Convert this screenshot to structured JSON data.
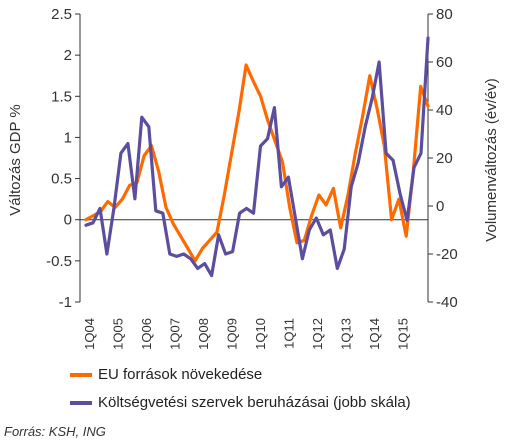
{
  "chart_data": {
    "type": "line",
    "x_ticks": [
      "1Q04",
      "1Q05",
      "1Q06",
      "1Q07",
      "1Q08",
      "1Q09",
      "1Q10",
      "1Q11",
      "1Q12",
      "1Q13",
      "1Q14",
      "1Q15"
    ],
    "ylabel_left": "Változás GDP %",
    "ylabel_right": "Volumenváltozás (év/év)",
    "ylim_left": [
      -1,
      2.5
    ],
    "yticks_left": [
      "-1",
      "-0.5",
      "0",
      "0.5",
      "1",
      "1.5",
      "2",
      "2.5"
    ],
    "ylim_right": [
      -40,
      80
    ],
    "yticks_right": [
      "-40",
      "-20",
      "0",
      "20",
      "40",
      "60",
      "80"
    ],
    "grid": false,
    "legend_position": "bottom",
    "series": [
      {
        "name": "EU források növekedése",
        "axis": "left",
        "color": "#ff6a00",
        "values": [
          0.0,
          0.05,
          0.1,
          0.22,
          0.15,
          0.25,
          0.42,
          0.45,
          0.78,
          0.9,
          0.58,
          0.15,
          -0.05,
          -0.2,
          -0.35,
          -0.5,
          -0.35,
          -0.25,
          -0.15,
          0.3,
          0.8,
          1.3,
          1.88,
          1.68,
          1.5,
          1.2,
          0.95,
          0.7,
          0.15,
          -0.28,
          -0.25,
          0.05,
          0.3,
          0.18,
          0.38,
          -0.1,
          0.3,
          0.8,
          1.25,
          1.75,
          1.35,
          0.9,
          0.0,
          0.25,
          -0.2,
          0.6,
          1.62,
          1.38
        ]
      },
      {
        "name": "Költségvetési szervek beruházásai (jobb skála)",
        "axis": "right",
        "color": "#5b4ea0",
        "values": [
          -8,
          -7,
          -1,
          -20,
          -1,
          22,
          26,
          3,
          37,
          33,
          -2,
          -3,
          -20,
          -21,
          -20,
          -22,
          -26,
          -24,
          -29,
          -12,
          -20,
          -19,
          -3,
          -1,
          -3,
          25,
          28,
          41,
          8,
          12,
          -5,
          -22,
          -10,
          -5,
          -12,
          -10,
          -26,
          -18,
          8,
          18,
          33,
          45,
          60,
          22,
          19,
          5,
          -6,
          16,
          22,
          70
        ]
      }
    ]
  },
  "legend": {
    "eu": "EU források növekedése",
    "kolt": "Költségvetési szervek beruházásai (jobb skála)"
  },
  "source": "Forrás: KSH, ING"
}
